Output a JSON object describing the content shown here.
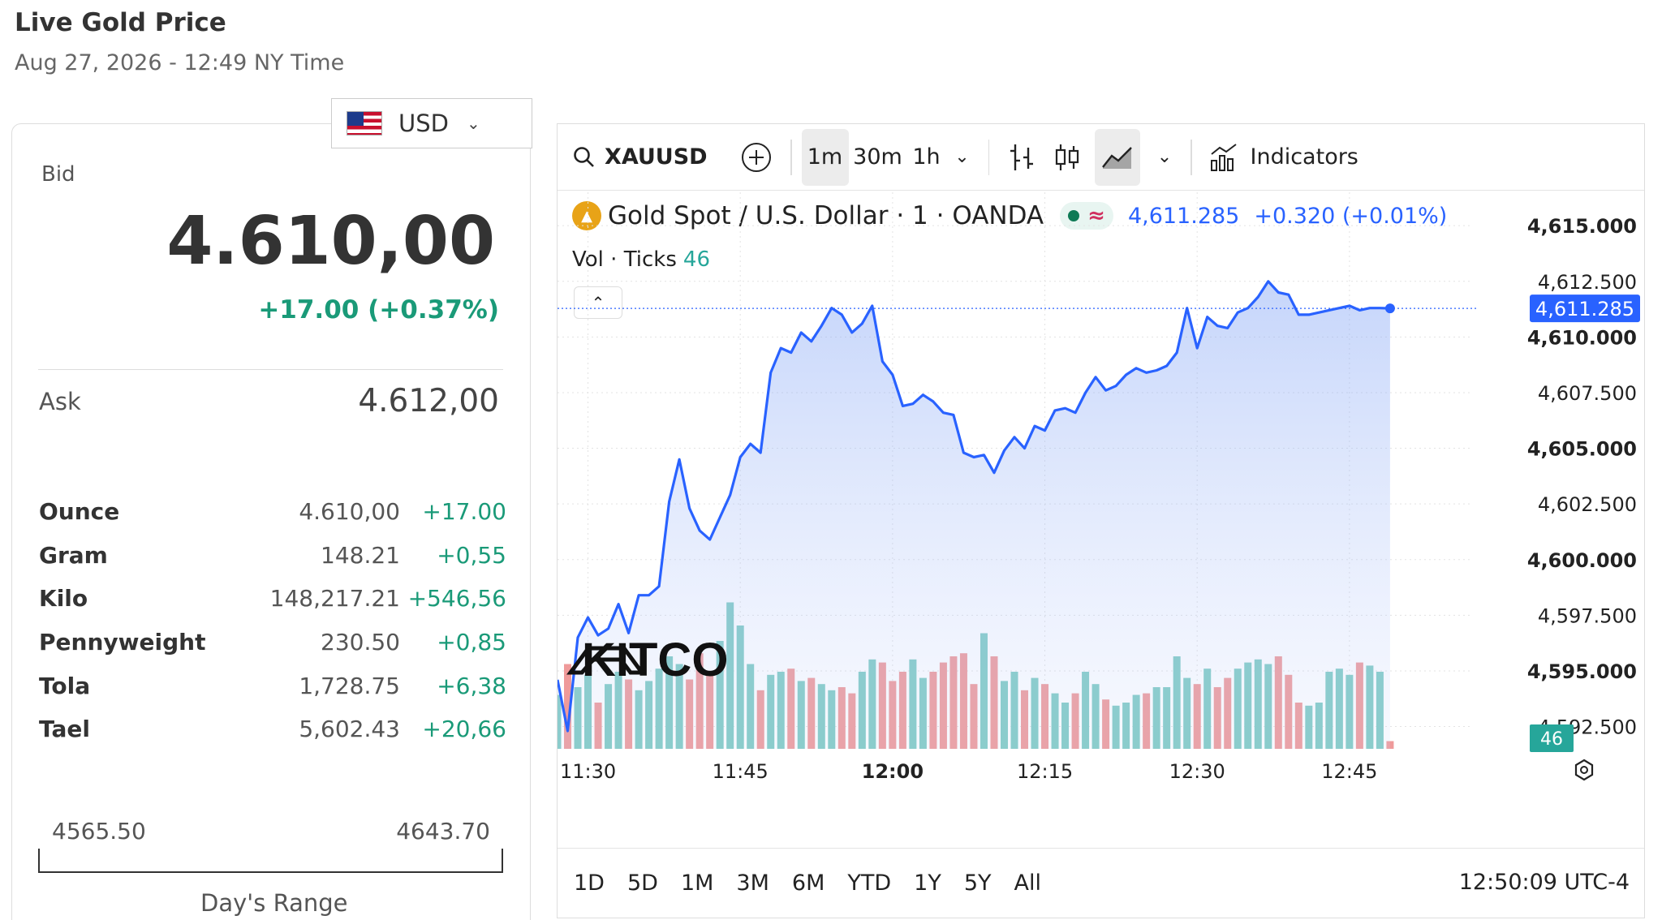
{
  "header": {
    "title": "Live Gold Price",
    "subtitle": "Aug 27, 2026 - 12:49 NY Time"
  },
  "currency": {
    "selected": "USD"
  },
  "quote": {
    "bid_label": "Bid",
    "bid": "4.610,00",
    "change": "+17.00 (+0.37%)",
    "ask_label": "Ask",
    "ask": "4.612,00"
  },
  "units": [
    {
      "name": "Ounce",
      "value": "4.610,00",
      "change": "+17.00"
    },
    {
      "name": "Gram",
      "value": "148.21",
      "change": "+0,55"
    },
    {
      "name": "Kilo",
      "value": "148,217.21",
      "change": "+546,56"
    },
    {
      "name": "Pennyweight",
      "value": "230.50",
      "change": "+0,85"
    },
    {
      "name": "Tola",
      "value": "1,728.75",
      "change": "+6,38"
    },
    {
      "name": "Tael",
      "value": "5,602.43",
      "change": "+20,66"
    }
  ],
  "day_range": {
    "low": "4565.50",
    "high": "4643.70",
    "label": "Day's Range"
  },
  "toolbar": {
    "symbol": "XAUUSD",
    "intervals": [
      "1m",
      "30m",
      "1h"
    ],
    "selected_interval": "1m",
    "indicators_label": "Indicators"
  },
  "legend": {
    "instrument": "Gold Spot / U.S. Dollar · 1 · OANDA",
    "last": "4,611.285",
    "change": "+0.320 (+0.01%)",
    "vol_label": "Vol · Ticks",
    "vol_value": "46"
  },
  "watermark": "KITCO",
  "ranges": [
    "1D",
    "5D",
    "1M",
    "3M",
    "6M",
    "YTD",
    "1Y",
    "5Y",
    "All"
  ],
  "clock": "12:50:09 UTC-4",
  "colors": {
    "line": "#2962ff",
    "up_volume": "#80cbc4",
    "down_volume": "#ef9a9a",
    "accent_green": "#1a9a78"
  },
  "chart_data": {
    "type": "area",
    "title": "Gold Spot / U.S. Dollar · 1 · OANDA",
    "x_ticks": [
      "11:30",
      "11:45",
      "12:00",
      "12:15",
      "12:30",
      "12:45"
    ],
    "x_ticks_bold": [
      "12:00"
    ],
    "y_ticks": [
      "4,615.000",
      "4,612.500",
      "4,610.000",
      "4,607.500",
      "4,605.000",
      "4,602.500",
      "4,600.000",
      "4,597.500",
      "4,595.000",
      "4,592.500"
    ],
    "y_ticks_bold": [
      "4,615.000",
      "4,610.000",
      "4,605.000",
      "4,600.000",
      "4,595.000"
    ],
    "ylim": [
      4591.5,
      4616.5
    ],
    "last_price_label": "4,611.285",
    "volume_label": "46",
    "series": [
      {
        "name": "XAUUSD",
        "x_minutes": [
          0,
          1,
          2,
          3,
          4,
          5,
          6,
          7,
          8,
          9,
          10,
          11,
          12,
          13,
          14,
          15,
          16,
          17,
          18,
          19,
          20,
          21,
          22,
          23,
          24,
          25,
          26,
          27,
          28,
          29,
          30,
          31,
          32,
          33,
          34,
          35,
          36,
          37,
          38,
          39,
          40,
          41,
          42,
          43,
          44,
          45,
          46,
          47,
          48,
          49,
          50,
          51,
          52,
          53,
          54,
          55,
          56,
          57,
          58,
          59,
          60,
          61,
          62,
          63,
          64,
          65,
          66,
          67,
          68,
          69,
          70,
          71,
          72,
          73,
          74,
          75,
          76,
          77,
          78,
          79,
          80,
          81,
          82
        ],
        "values": [
          4594.6,
          4592.3,
          4596.5,
          4597.4,
          4596.6,
          4596.9,
          4598.0,
          4596.7,
          4598.4,
          4598.4,
          4598.8,
          4602.6,
          4604.5,
          4602.3,
          4601.3,
          4600.9,
          4601.9,
          4602.9,
          4604.6,
          4605.2,
          4604.8,
          4608.4,
          4609.5,
          4609.3,
          4610.2,
          4609.8,
          4610.5,
          4611.3,
          4611.0,
          4610.2,
          4610.6,
          4611.4,
          4608.9,
          4608.3,
          4606.9,
          4607.0,
          4607.4,
          4607.1,
          4606.6,
          4606.5,
          4604.8,
          4604.6,
          4604.7,
          4603.9,
          4604.9,
          4605.5,
          4605.0,
          4606.0,
          4605.8,
          4606.7,
          4606.8,
          4606.6,
          4607.5,
          4608.2,
          4607.6,
          4607.8,
          4608.3,
          4608.6,
          4608.4,
          4608.5,
          4608.7,
          4609.3,
          4611.3,
          4609.5,
          4610.9,
          4610.5,
          4610.4,
          4611.1,
          4611.3,
          4611.8,
          4612.5,
          4612.0,
          4611.9,
          4611.0,
          4611.0,
          4611.1,
          4611.2,
          4611.3,
          4611.4,
          4611.2,
          4611.3,
          4611.3,
          4611.285
        ]
      }
    ]
  }
}
